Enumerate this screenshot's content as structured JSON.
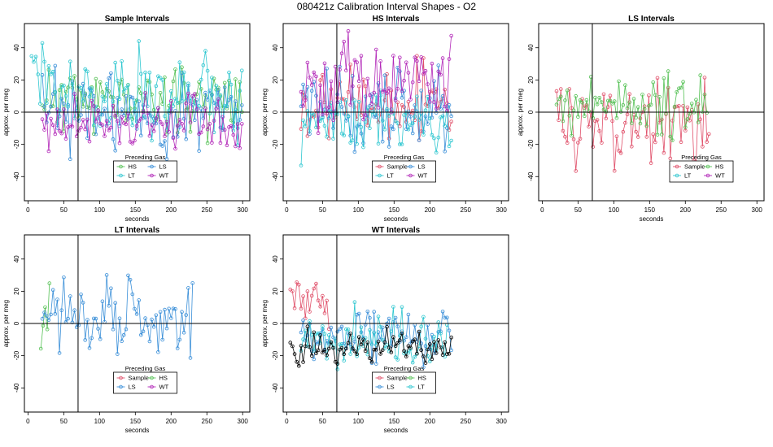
{
  "title": "080421z   Calibration Interval Shapes - O2",
  "colors": {
    "Sample": "#e0506a",
    "HS": "#55c155",
    "LS": "#3a8fd8",
    "LT": "#2fc7d0",
    "WT": "#b227b8",
    "black": "#000000"
  },
  "chart_data": [
    {
      "type": "line",
      "title": "Sample Intervals",
      "xlabel": "seconds",
      "ylabel": "approx. per meg",
      "xlim": [
        -5,
        310
      ],
      "ylim": [
        -55,
        55
      ],
      "xticks": [
        0,
        50,
        100,
        150,
        200,
        250,
        300
      ],
      "yticks": [
        -40,
        -20,
        0,
        20,
        40
      ],
      "vline": 70,
      "hline": 0,
      "legend": {
        "title": "Preceding Gas",
        "entries": [
          "HS",
          "LS",
          "LT",
          "WT"
        ],
        "placement": "bottom-center"
      },
      "series": [
        {
          "name": "HS",
          "x_start": 20,
          "x_end": 300,
          "step": 3,
          "mean": 8,
          "amp": 10,
          "seed": 11
        },
        {
          "name": "LS",
          "x_start": 20,
          "x_end": 300,
          "step": 3,
          "mean": 0,
          "amp": 12,
          "seed": 23
        },
        {
          "name": "LT",
          "x_start": 5,
          "x_end": 300,
          "step": 3,
          "mean": 12,
          "amp": 14,
          "seed": 37
        },
        {
          "name": "WT",
          "x_start": 20,
          "x_end": 300,
          "step": 3,
          "mean": -8,
          "amp": 9,
          "seed": 41
        }
      ]
    },
    {
      "type": "line",
      "title": "HS Intervals",
      "xlabel": "seconds",
      "ylabel": "approx. per meg",
      "xlim": [
        -5,
        310
      ],
      "ylim": [
        -55,
        55
      ],
      "xticks": [
        0,
        50,
        100,
        150,
        200,
        250,
        300
      ],
      "yticks": [
        -40,
        -20,
        0,
        20,
        40
      ],
      "vline": 70,
      "hline": 0,
      "legend": {
        "title": "Preceding Gas",
        "entries": [
          "Sample",
          "LS",
          "LT",
          "WT"
        ],
        "placement": "bottom-center"
      },
      "series": [
        {
          "name": "Sample",
          "x_start": 20,
          "x_end": 230,
          "step": 3,
          "mean": 5,
          "amp": 12,
          "seed": 53
        },
        {
          "name": "LS",
          "x_start": 20,
          "x_end": 230,
          "step": 3,
          "mean": 0,
          "amp": 14,
          "seed": 61
        },
        {
          "name": "LT",
          "x_start": 20,
          "x_end": 230,
          "step": 3,
          "mean": -5,
          "amp": 10,
          "seed": 71
        },
        {
          "name": "WT",
          "x_start": 20,
          "x_end": 230,
          "step": 3,
          "mean": 20,
          "amp": 15,
          "seed": 83
        }
      ]
    },
    {
      "type": "line",
      "title": "LS Intervals",
      "xlabel": "seconds",
      "ylabel": "approx. per meg",
      "xlim": [
        -5,
        310
      ],
      "ylim": [
        -55,
        55
      ],
      "xticks": [
        0,
        50,
        100,
        150,
        200,
        250,
        300
      ],
      "yticks": [
        -40,
        -20,
        0,
        20,
        40
      ],
      "vline": 70,
      "hline": 0,
      "legend": {
        "title": "Preceding Gas",
        "entries": [
          "Sample",
          "HS",
          "LT",
          "WT"
        ],
        "placement": "bottom-right"
      },
      "series": [
        {
          "name": "Sample",
          "x_start": 20,
          "x_end": 235,
          "step": 3,
          "mean": -5,
          "amp": 15,
          "seed": 97
        },
        {
          "name": "HS",
          "x_start": 20,
          "x_end": 230,
          "step": 3,
          "mean": 5,
          "amp": 10,
          "seed": 101
        }
      ]
    },
    {
      "type": "line",
      "title": "LT Intervals",
      "xlabel": "seconds",
      "ylabel": "approx. per meg",
      "xlim": [
        -5,
        310
      ],
      "ylim": [
        -55,
        55
      ],
      "xticks": [
        0,
        50,
        100,
        150,
        200,
        250,
        300
      ],
      "yticks": [
        -40,
        -20,
        0,
        20,
        40
      ],
      "vline": 70,
      "hline": 0,
      "legend": {
        "title": "Preceding Gas",
        "entries": [
          "Sample",
          "HS",
          "LS",
          "WT"
        ],
        "placement": "bottom-center"
      },
      "series": [
        {
          "name": "HS",
          "x_start": 18,
          "x_end": 30,
          "step": 3,
          "mean": 10,
          "amp": 15,
          "seed": 113
        },
        {
          "name": "LS",
          "x_start": 20,
          "x_end": 230,
          "step": 3,
          "mean": 3,
          "amp": 12,
          "seed": 127
        }
      ]
    },
    {
      "type": "line",
      "title": "WT Intervals",
      "xlabel": "seconds",
      "ylabel": "approx. per meg",
      "xlim": [
        -5,
        310
      ],
      "ylim": [
        -55,
        55
      ],
      "xticks": [
        0,
        50,
        100,
        150,
        200,
        250,
        300
      ],
      "yticks": [
        -40,
        -20,
        0,
        20,
        40
      ],
      "vline": 70,
      "hline": 0,
      "legend": {
        "title": "Preceding Gas",
        "entries": [
          "Sample",
          "HS",
          "LS",
          "LT"
        ],
        "placement": "bottom-center"
      },
      "series": [
        {
          "name": "Sample",
          "x_start": 5,
          "x_end": 60,
          "step": 3,
          "mean": 15,
          "amp": 8,
          "seed": 131
        },
        {
          "name": "LS",
          "x_start": 20,
          "x_end": 230,
          "step": 3,
          "mean": -8,
          "amp": 8,
          "seed": 139
        },
        {
          "name": "LT",
          "x_start": 20,
          "x_end": 225,
          "step": 3,
          "mean": -10,
          "amp": 9,
          "seed": 149
        },
        {
          "name": "black",
          "x_start": 5,
          "x_end": 230,
          "step": 3,
          "mean": -15,
          "amp": 5,
          "seed": 151
        }
      ]
    }
  ]
}
